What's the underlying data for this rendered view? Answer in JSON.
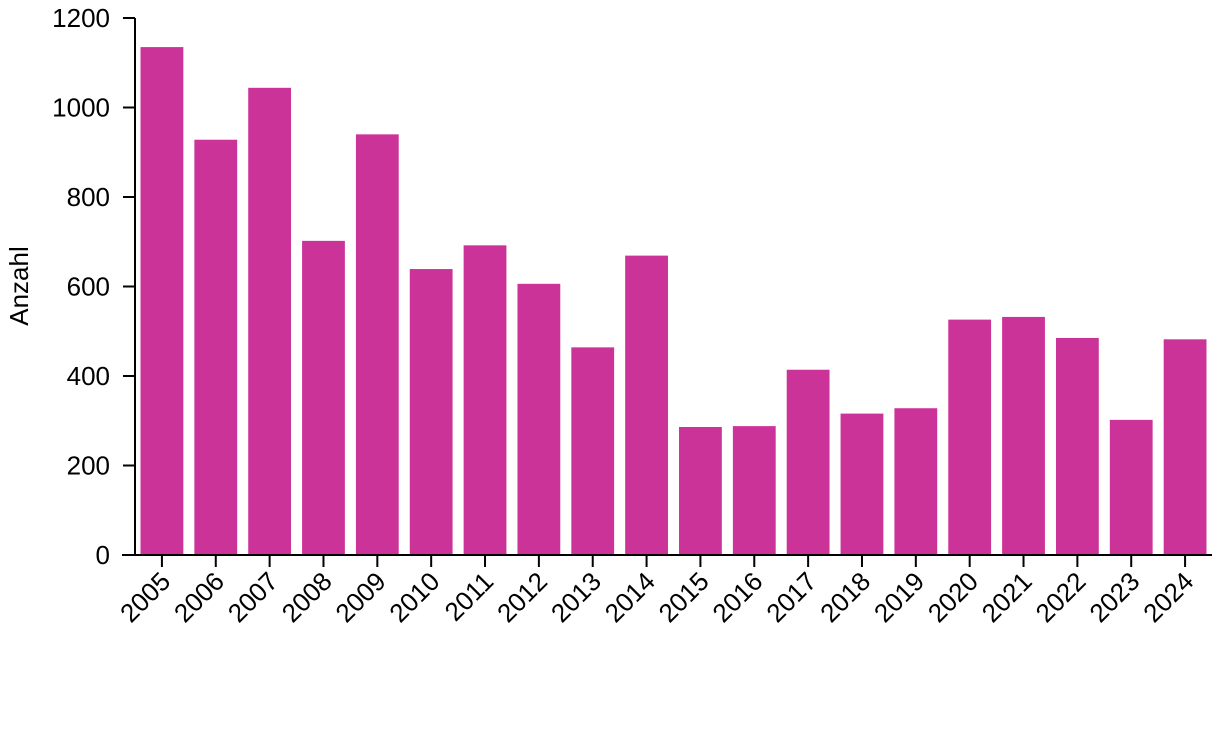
{
  "colors": {
    "bar": "#cc3399",
    "axis": "#000000",
    "background": "#ffffff"
  },
  "chart_data": {
    "type": "bar",
    "title": "",
    "xlabel": "",
    "ylabel": "Anzahl",
    "categories": [
      "2005",
      "2006",
      "2007",
      "2008",
      "2009",
      "2010",
      "2011",
      "2012",
      "2013",
      "2014",
      "2015",
      "2016",
      "2017",
      "2018",
      "2019",
      "2020",
      "2021",
      "2022",
      "2023",
      "2024"
    ],
    "values": [
      1135,
      928,
      1044,
      702,
      940,
      639,
      692,
      606,
      464,
      669,
      286,
      288,
      414,
      316,
      328,
      526,
      532,
      485,
      302,
      482
    ],
    "ylim": [
      0,
      1200
    ],
    "yticks": [
      0,
      200,
      400,
      600,
      800,
      1000,
      1200
    ],
    "grid": false,
    "legend": "none"
  }
}
